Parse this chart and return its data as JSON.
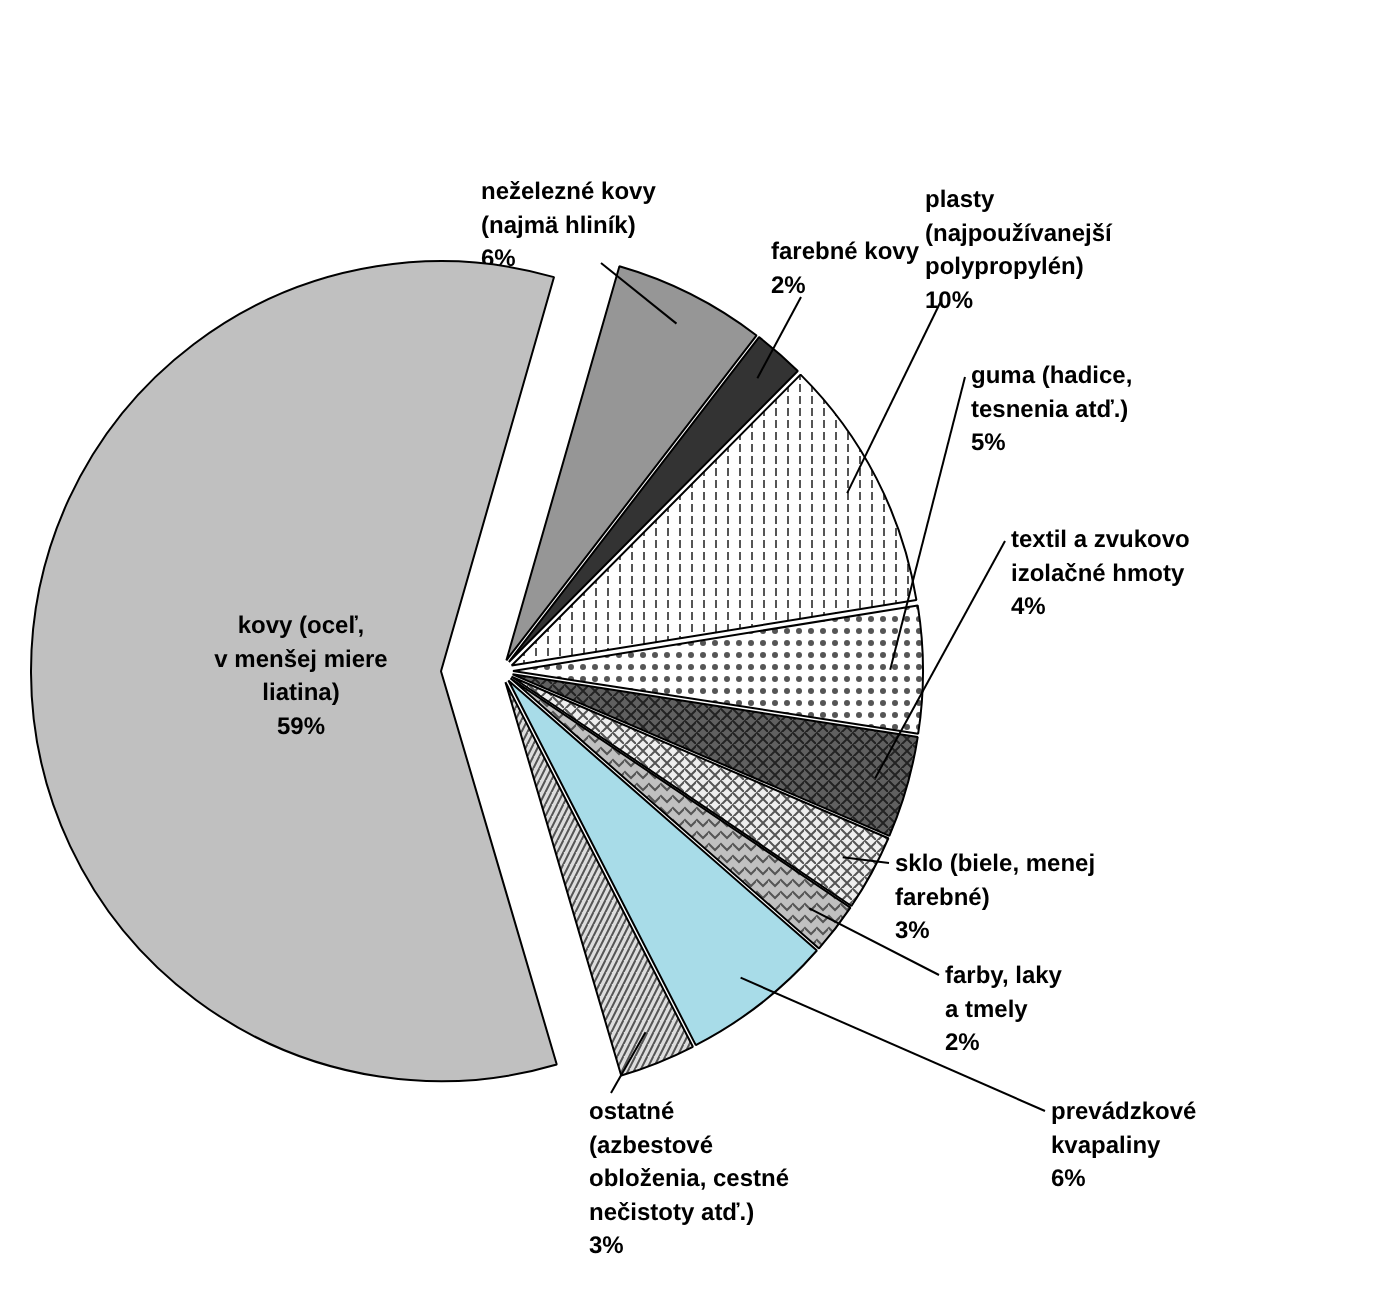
{
  "chart_data": {
    "type": "pie",
    "categories": [
      "neželezné kovy\n(najmä hliník)",
      "farebné kovy",
      "plasty\n(najpoužívanejší\npolypropylén)",
      "guma (hadice,\ntesnenia atď.)",
      "textil a zvukovo\nizolačné hmoty",
      "sklo (biele, menej\nfarebné)",
      "farby, laky\na tmely",
      "prevádzkové\nkvapaliny",
      "ostatné\n(azbestové\nobloženia, cestné\nnečistoty atď.)",
      "kovy (oceľ,\nv menšej miere\nliatina)"
    ],
    "values": [
      6,
      2,
      10,
      5,
      4,
      3,
      2,
      6,
      3,
      59
    ],
    "value_labels": [
      "6%",
      "2%",
      "10%",
      "5%",
      "4%",
      "3%",
      "2%",
      "6%",
      "3%",
      "59%"
    ],
    "colors": [
      "#969696",
      "#333333",
      "#ffffff",
      "#ffffff",
      "#606060",
      "#eeeeee",
      "#c0c0c0",
      "#a8dce8",
      "#dddddd",
      "#c0c0c0"
    ]
  }
}
